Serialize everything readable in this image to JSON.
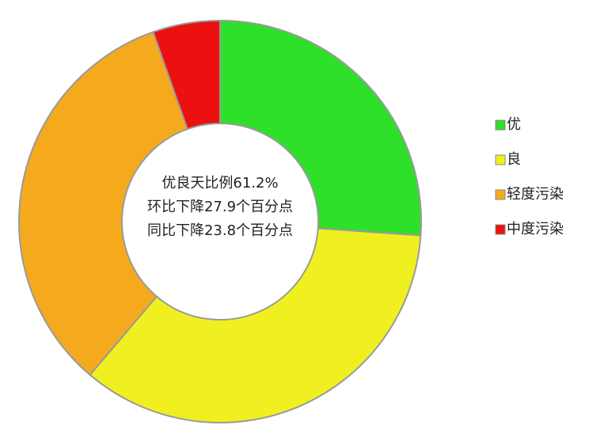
{
  "chart_data": {
    "type": "donut",
    "categories": [
      "优",
      "良",
      "轻度污染",
      "中度污染"
    ],
    "values": [
      26.1,
      35.1,
      33.4,
      5.4
    ],
    "colors": [
      "#2ee02a",
      "#f0f020",
      "#f5aa1e",
      "#ec1010"
    ],
    "annotations": [
      "优良天比例61.2%",
      "环比下降27.9个百分点",
      "同比下降23.8个百分点"
    ],
    "legend": "right"
  }
}
